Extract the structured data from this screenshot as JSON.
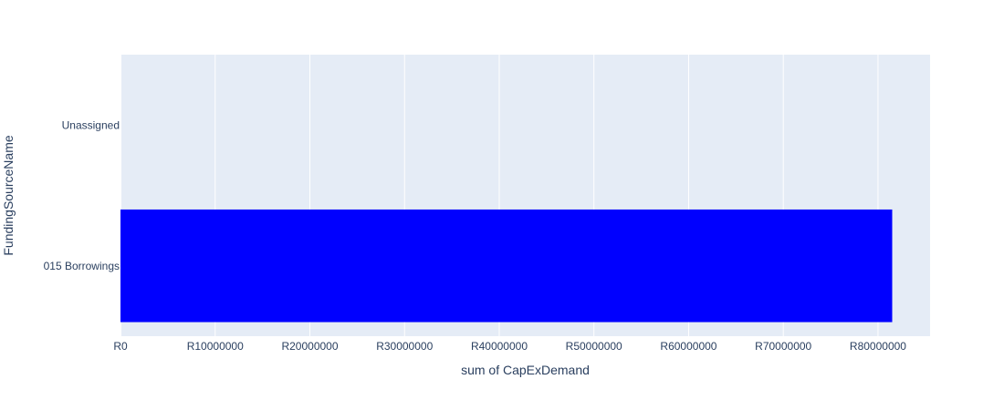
{
  "chart_data": {
    "type": "bar",
    "orientation": "horizontal",
    "title": "",
    "xlabel": "sum of CapExDemand",
    "ylabel": "FundingSourceName",
    "categories": [
      "015 Borrowings",
      "Unassigned"
    ],
    "values": [
      81500000,
      0
    ],
    "xlim": [
      0,
      85500000
    ],
    "x_ticks": [
      0,
      10000000,
      20000000,
      30000000,
      40000000,
      50000000,
      60000000,
      70000000,
      80000000
    ],
    "x_tick_labels": [
      "R0",
      "R10000000",
      "R20000000",
      "R30000000",
      "R40000000",
      "R50000000",
      "R60000000",
      "R70000000",
      "R80000000"
    ],
    "grid": true,
    "legend": "none",
    "colors": {
      "bar": "#0000ff",
      "plot_background": "#e5ecf6",
      "grid": "#ffffff",
      "text": "#2a3f5f"
    }
  }
}
